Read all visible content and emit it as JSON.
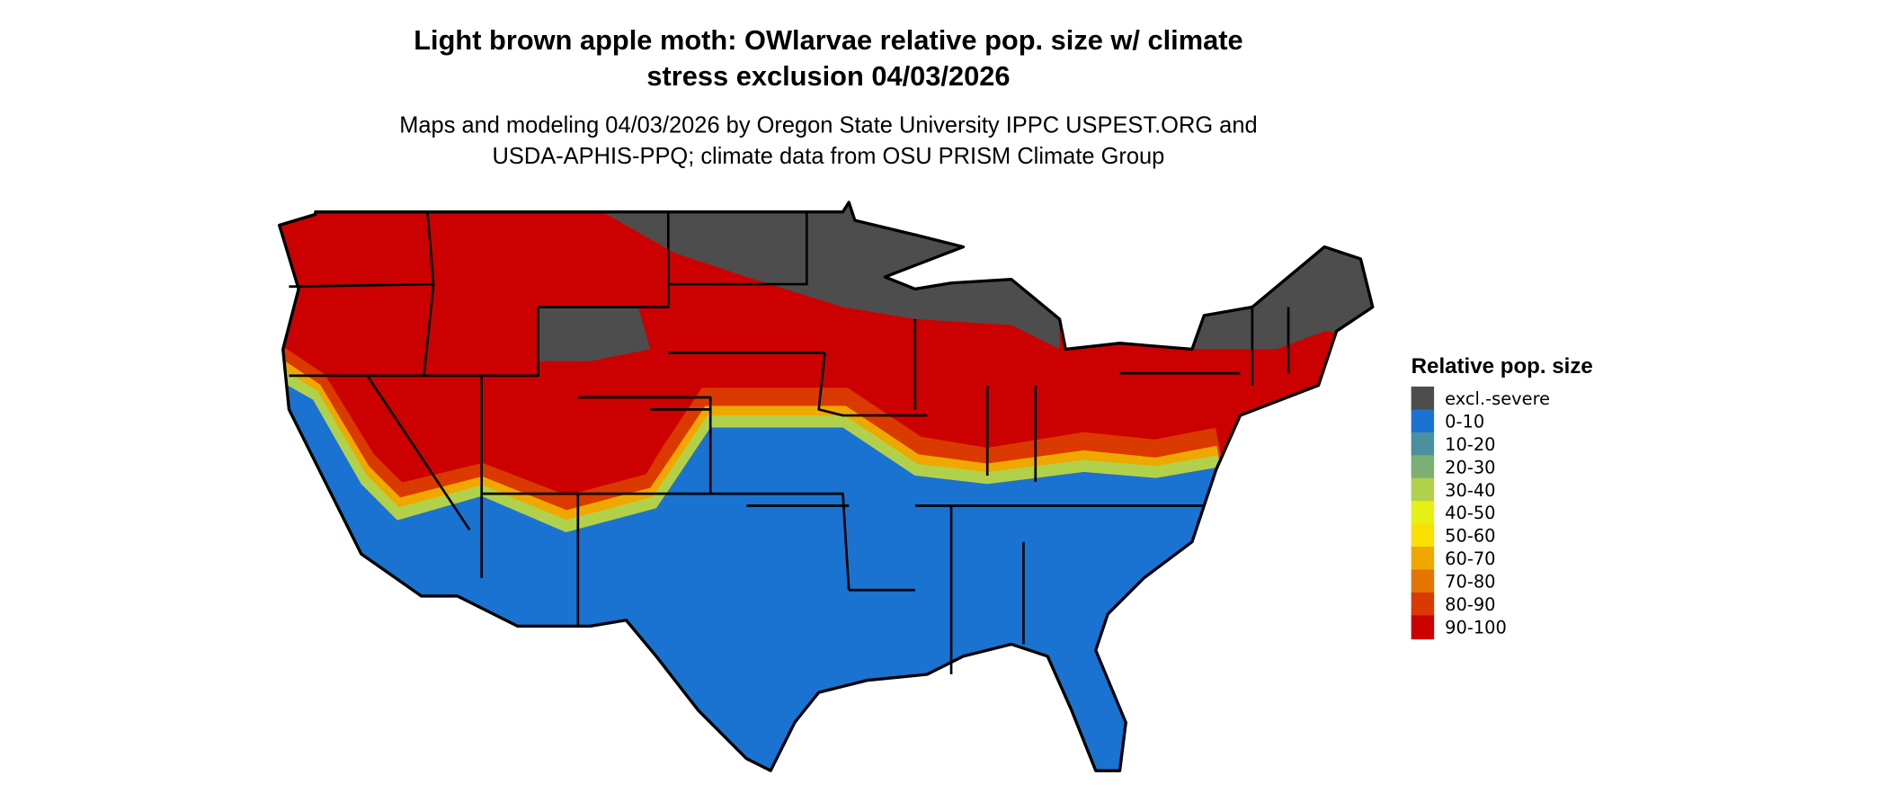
{
  "title": {
    "line1": "Light brown apple moth: OWlarvae relative pop. size w/ climate",
    "line2": "stress exclusion 04/03/2026"
  },
  "subtitle": {
    "line1": "Maps and modeling 04/03/2026 by Oregon State University IPPC USPEST.ORG and",
    "line2": "USDA-APHIS-PPQ; climate data from OSU PRISM Climate Group"
  },
  "legend": {
    "title": "Relative pop. size",
    "items": [
      {
        "label": "excl.-severe",
        "color": "#4d4d4d"
      },
      {
        "label": "0-10",
        "color": "#1a73d0"
      },
      {
        "label": "10-20",
        "color": "#4a909e"
      },
      {
        "label": "20-30",
        "color": "#7caf74"
      },
      {
        "label": "30-40",
        "color": "#b2d14a"
      },
      {
        "label": "40-50",
        "color": "#e6f014"
      },
      {
        "label": "50-60",
        "color": "#f8e000"
      },
      {
        "label": "60-70",
        "color": "#efa800"
      },
      {
        "label": "70-80",
        "color": "#e47500"
      },
      {
        "label": "80-90",
        "color": "#da3a00"
      },
      {
        "label": "90-100",
        "color": "#cc0000"
      }
    ]
  },
  "map": {
    "region": "Contiguous United States",
    "state_borders": true
  }
}
